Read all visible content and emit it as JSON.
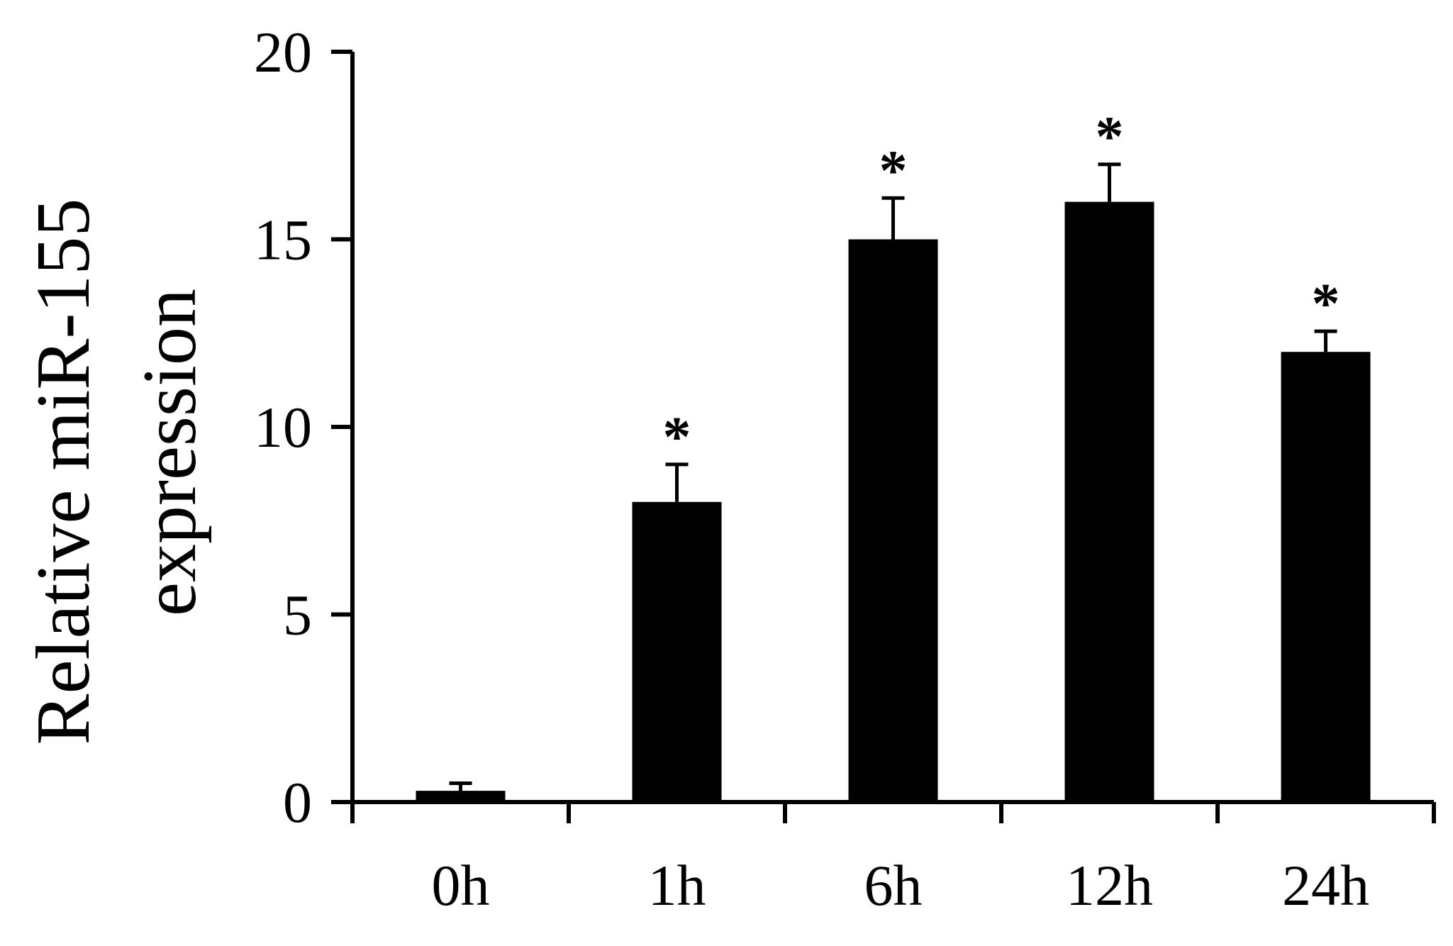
{
  "chart_data": {
    "type": "bar",
    "title": "",
    "xlabel": "",
    "ylabel": {
      "line1": "Relative miR-155",
      "line2": "expression"
    },
    "ylim": [
      0,
      20
    ],
    "yticks": [
      0,
      5,
      10,
      15,
      20
    ],
    "categories": [
      "0h",
      "1h",
      "6h",
      "12h",
      "24h"
    ],
    "values": [
      0.3,
      8.0,
      15.0,
      16.0,
      12.0
    ],
    "errors": [
      0.2,
      1.0,
      1.1,
      1.0,
      0.55
    ],
    "significance": [
      "",
      "*",
      "*",
      "*",
      "*"
    ],
    "bar_color": "#000000",
    "grid": false,
    "legend": "none"
  }
}
